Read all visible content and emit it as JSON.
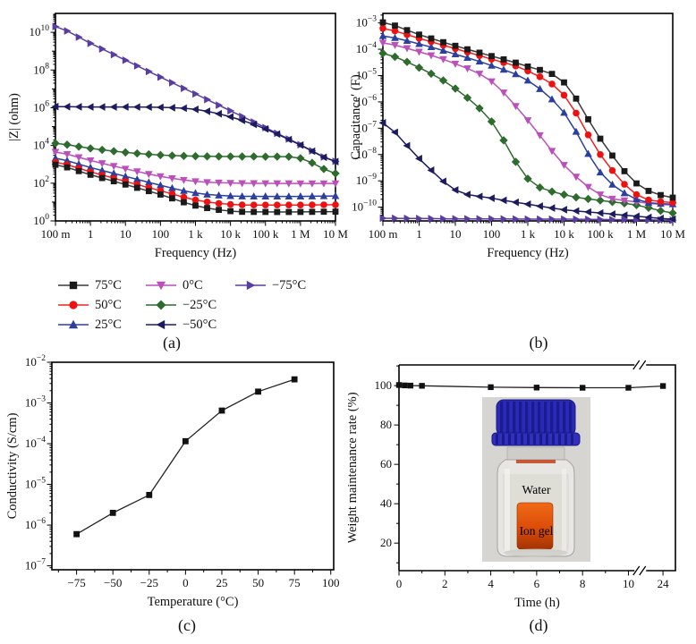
{
  "figure": {
    "captions": {
      "a": "(a)",
      "b": "(b)",
      "c": "(c)",
      "d": "(d)"
    }
  },
  "legend": {
    "items": [
      {
        "label": "75°C",
        "marker": "square",
        "color": "#1a1a1a",
        "line_color": "#3a3a3a"
      },
      {
        "label": "50°C",
        "marker": "circle",
        "color": "#ee1111",
        "line_color": "#f02020"
      },
      {
        "label": "25°C",
        "marker": "triangle-up",
        "color": "#2a3f9f",
        "line_color": "#2a3f9f"
      },
      {
        "label": "0°C",
        "marker": "triangle-down",
        "color": "#bb4fbb",
        "line_color": "#bb4fbb"
      },
      {
        "label": "−25°C",
        "marker": "diamond",
        "color": "#2e6b2e",
        "line_color": "#2e6b2e"
      },
      {
        "label": "−50°C",
        "marker": "triangle-left",
        "color": "#1b1b5e",
        "line_color": "#1b1b5e"
      },
      {
        "label": "−75°C",
        "marker": "triangle-right",
        "color": "#5a3da3",
        "line_color": "#5a3da3"
      }
    ]
  },
  "inset": {
    "water_label": "Water",
    "ion_gel_label": "Ion gel",
    "cap_color": "#2a2ab2",
    "gel_color": "#e05a10"
  },
  "chart_data": [
    {
      "id": "a",
      "type": "line",
      "resample_per_decade": 3,
      "x_axis": {
        "scale": "log",
        "min": 0.1,
        "max": 10000000.0,
        "label": "Frequency (Hz)",
        "ticks": [
          0.1,
          1,
          10,
          100,
          1000,
          10000,
          100000,
          1000000,
          10000000
        ],
        "tick_labels": [
          "100 m",
          "1",
          "10",
          "100",
          "1 k",
          "10 k",
          "100 k",
          "1 M",
          "10 M"
        ]
      },
      "y_axis": {
        "scale": "log",
        "min": 1,
        "max": 100000000000.0,
        "label": "|Z| (ohm)",
        "labeled_exponents": [
          0,
          2,
          4,
          6,
          8,
          10
        ],
        "decade_range": [
          0,
          11
        ]
      },
      "series": [
        {
          "name": "75°C",
          "marker": "square",
          "color": "#1a1a1a",
          "line_color": "#3a3a3a",
          "values": [
            950,
            280,
            85,
            25,
            6.5,
            3.3,
            3.0,
            3.0,
            3.1
          ]
        },
        {
          "name": "50°C",
          "marker": "circle",
          "color": "#ee1111",
          "line_color": "#f02020",
          "values": [
            1300,
            400,
            125,
            40,
            13,
            7.5,
            7.0,
            7.0,
            7.2
          ]
        },
        {
          "name": "25°C",
          "marker": "triangle-up",
          "color": "#2a3f9f",
          "line_color": "#2a3f9f",
          "values": [
            2100,
            680,
            230,
            78,
            30,
            21,
            20,
            20,
            21
          ]
        },
        {
          "name": "0°C",
          "marker": "triangle-down",
          "color": "#bb4fbb",
          "line_color": "#bb4fbb",
          "values": [
            4500,
            1600,
            580,
            230,
            125,
            102,
            98,
            97,
            97
          ]
        },
        {
          "name": "−25°C",
          "marker": "diamond",
          "color": "#2e6b2e",
          "line_color": "#2e6b2e",
          "values": [
            13000,
            7000,
            4300,
            3100,
            2700,
            2600,
            2550,
            2100,
            330
          ]
        },
        {
          "name": "−50°C",
          "marker": "triangle-left",
          "color": "#1b1b5e",
          "line_color": "#1b1b5e",
          "values": [
            1150000,
            1100000,
            1100000,
            1050000,
            820000,
            330000,
            75000,
            10500,
            1400
          ]
        },
        {
          "name": "−75°C",
          "marker": "triangle-right",
          "color": "#5a3da3",
          "line_color": "#5a3da3",
          "values": [
            20000000000.0,
            2600000000.0,
            330000000.0,
            42000000.0,
            5400000.0,
            690000.0,
            88000.0,
            11000.0,
            1450.0
          ]
        }
      ]
    },
    {
      "id": "b",
      "type": "line",
      "resample_per_decade": 3,
      "x_axis": {
        "scale": "log",
        "min": 0.1,
        "max": 10000000.0,
        "label": "Frequency (Hz)",
        "ticks": [
          0.1,
          1,
          10,
          100,
          1000,
          10000,
          100000,
          1000000,
          10000000
        ],
        "tick_labels": [
          "100 m",
          "1",
          "10",
          "100",
          "1 k",
          "10 k",
          "100 k",
          "1 M",
          "10 M"
        ]
      },
      "y_axis": {
        "scale": "log",
        "min": 3e-11,
        "max": 0.0023,
        "label": "Capacitance′ (F)",
        "labeled_exponents": [
          -3,
          -4,
          -5,
          -6,
          -7,
          -8,
          -9,
          -10
        ],
        "decade_range": [
          -11,
          -3
        ]
      },
      "series": [
        {
          "name": "75°C",
          "marker": "square",
          "color": "#1a1a1a",
          "line_color": "#3a3a3a",
          "values": [
            0.00105,
            0.00036,
            0.000135,
            5.5e-05,
            2.2e-05,
            5.5e-06,
            4e-08,
            8e-10,
            2.3e-10
          ]
        },
        {
          "name": "50°C",
          "marker": "circle",
          "color": "#ee1111",
          "line_color": "#f02020",
          "values": [
            0.00062,
            0.00026,
            0.000105,
            4.2e-05,
            1.5e-05,
            1.8e-06,
            1e-08,
            3e-10,
            1.5e-10
          ]
        },
        {
          "name": "25°C",
          "marker": "triangle-up",
          "color": "#2a3f9f",
          "line_color": "#2a3f9f",
          "values": [
            0.00032,
            0.00016,
            6.5e-05,
            2.4e-05,
            6.5e-06,
            3.9e-07,
            2.1e-09,
            2e-10,
            1.3e-10
          ]
        },
        {
          "name": "0°C",
          "marker": "triangle-down",
          "color": "#bb4fbb",
          "line_color": "#bb4fbb",
          "values": [
            0.000175,
            8e-05,
            2.8e-05,
            6e-06,
            2e-07,
            4e-09,
            3e-10,
            1.6e-10,
            1.2e-10
          ]
        },
        {
          "name": "−25°C",
          "marker": "diamond",
          "color": "#2e6b2e",
          "line_color": "#2e6b2e",
          "values": [
            7e-05,
            2e-05,
            3.2e-06,
            1.8e-07,
            1.2e-09,
            3e-10,
            1.8e-10,
            1.2e-10,
            6e-11
          ]
        },
        {
          "name": "−50°C",
          "marker": "triangle-left",
          "color": "#1b1b5e",
          "line_color": "#1b1b5e",
          "values": [
            1.6e-07,
            7e-09,
            4.5e-10,
            2.2e-10,
            1.3e-10,
            8e-11,
            6e-11,
            4.5e-11,
            3.5e-11
          ]
        },
        {
          "name": "−75°C",
          "marker": "triangle-right",
          "color": "#5a3da3",
          "line_color": "#5a3da3",
          "values": [
            3.8e-11,
            3.7e-11,
            3.6e-11,
            3.6e-11,
            3.5e-11,
            3.5e-11,
            3.4e-11,
            3.3e-11,
            3.2e-11
          ]
        }
      ]
    },
    {
      "id": "c",
      "type": "line",
      "x_axis": {
        "scale": "linear",
        "min": -92,
        "max": 102,
        "label": "Temperature (°C)",
        "ticks": [
          -75,
          -50,
          -25,
          0,
          25,
          50,
          75,
          100
        ],
        "tick_labels": [
          "−75",
          "−50",
          "−25",
          "0",
          "25",
          "50",
          "75",
          "100"
        ],
        "minor_ticks": [
          -87.5,
          -62.5,
          -37.5,
          -12.5,
          12.5,
          37.5,
          62.5,
          87.5
        ]
      },
      "y_axis": {
        "scale": "log",
        "min": 8e-08,
        "max": 0.01,
        "label": "Conductivity (S/cm)",
        "labeled_exponents": [
          -2,
          -3,
          -4,
          -5,
          -6,
          -7
        ],
        "decade_range": [
          -8,
          -2
        ]
      },
      "series": [
        {
          "name": "conductivity",
          "marker": "square",
          "color": "#111111",
          "line_color": "#222222",
          "x": [
            -75,
            -50,
            -25,
            0,
            25,
            50,
            75
          ],
          "y": [
            6e-07,
            2e-06,
            5.5e-06,
            0.000115,
            0.00065,
            0.0019,
            0.0038
          ]
        }
      ]
    },
    {
      "id": "d",
      "type": "line",
      "x_axis": {
        "scale": "broken",
        "min": 0,
        "max": 24,
        "label": "Time (h)",
        "break": {
          "max1": 10,
          "frac1": 0.83,
          "frac2": 0.125,
          "gap_frac": 0.873
        },
        "ticks": [
          0,
          2,
          4,
          6,
          8,
          10,
          24
        ],
        "tick_labels": [
          "0",
          "2",
          "4",
          "6",
          "8",
          "10",
          "24"
        ],
        "minor_ticks": [
          1,
          3,
          5,
          7,
          9
        ]
      },
      "y_axis": {
        "scale": "linear",
        "min": 6,
        "max": 110.5,
        "label": "Weight maintenance rate (%)",
        "ticks": [
          20,
          40,
          60,
          80,
          100
        ],
        "tick_labels": [
          "20",
          "40",
          "60",
          "80",
          "100"
        ],
        "minor_ticks": [
          10,
          30,
          50,
          70,
          90,
          110
        ]
      },
      "series": [
        {
          "name": "weight maintenance rate",
          "marker": "square",
          "color": "#111111",
          "line_color": "#222222",
          "x": [
            0,
            0.25,
            0.5,
            1,
            4,
            6,
            8,
            10,
            24
          ],
          "y": [
            100.3,
            100.1,
            100.0,
            99.9,
            99.2,
            99.0,
            98.9,
            98.9,
            99.8
          ]
        }
      ]
    }
  ]
}
